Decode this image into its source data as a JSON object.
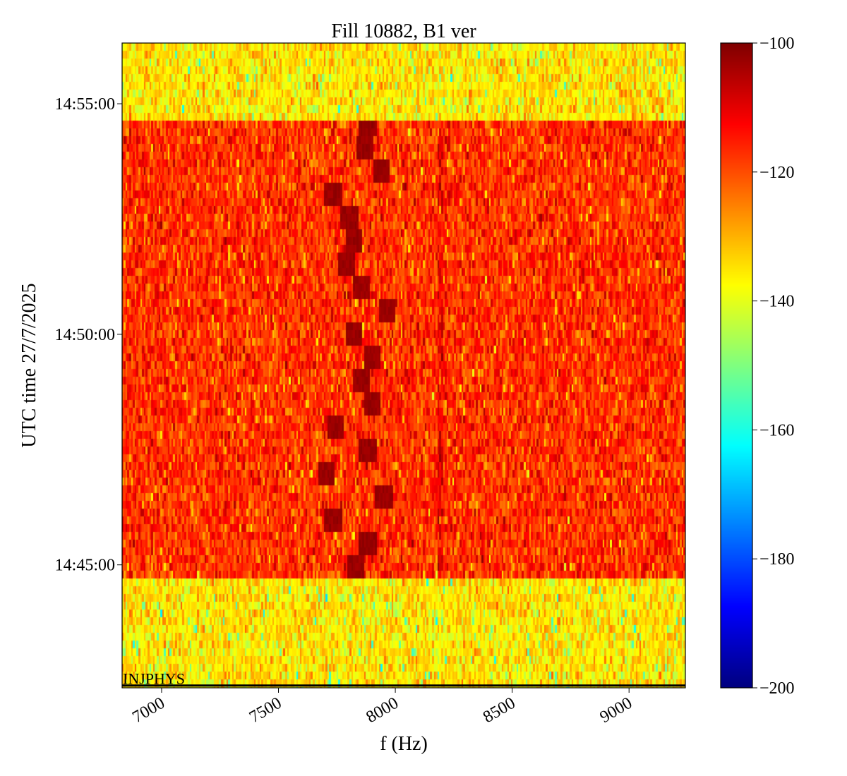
{
  "chart_data": {
    "type": "heatmap",
    "title": "Fill 10882, B1 ver",
    "xlabel": "f (Hz)",
    "ylabel": "UTC time 27/7/2025",
    "xlim": [
      6831,
      9241
    ],
    "ylim": [
      "14:42:20",
      "14:56:19"
    ],
    "xticks": [
      7000,
      7500,
      8000,
      8500,
      9000
    ],
    "xtick_labels": [
      "7000",
      "7500",
      "8000",
      "8500",
      "9000"
    ],
    "yticks": [
      "14:45:00",
      "14:50:00",
      "14:55:00"
    ],
    "colormap": "jet",
    "colorbar": {
      "range": [
        -200,
        -100
      ],
      "ticks": [
        -100,
        -120,
        -140,
        -160,
        -180,
        -200
      ],
      "tick_labels": [
        "−100",
        "−120",
        "−140",
        "−160",
        "−180",
        "−200"
      ]
    },
    "bands": [
      {
        "from": "14:54:39",
        "to": "14:56:19",
        "mean_level": -135
      },
      {
        "from": "14:44:41",
        "to": "14:54:39",
        "mean_level": -117
      },
      {
        "from": "14:42:20",
        "to": "14:44:41",
        "mean_level": -135
      }
    ],
    "vertical_line_feature_hz": 8190,
    "signal_track": [
      [
        "14:54:35",
        7880
      ],
      [
        "14:54:00",
        7870
      ],
      [
        "14:53:35",
        7940
      ],
      [
        "14:53:00",
        7730
      ],
      [
        "14:52:30",
        7800
      ],
      [
        "14:52:00",
        7820
      ],
      [
        "14:51:30",
        7790
      ],
      [
        "14:51:00",
        7850
      ],
      [
        "14:50:30",
        7960
      ],
      [
        "14:50:00",
        7820
      ],
      [
        "14:49:30",
        7900
      ],
      [
        "14:49:00",
        7850
      ],
      [
        "14:48:30",
        7900
      ],
      [
        "14:48:00",
        7740
      ],
      [
        "14:47:30",
        7880
      ],
      [
        "14:47:00",
        7700
      ],
      [
        "14:46:30",
        7950
      ],
      [
        "14:46:00",
        7730
      ],
      [
        "14:45:30",
        7880
      ],
      [
        "14:45:00",
        7830
      ],
      [
        "14:44:45",
        7780
      ]
    ],
    "annotation": {
      "label": "INJPHYS",
      "time": "14:42:23"
    }
  }
}
